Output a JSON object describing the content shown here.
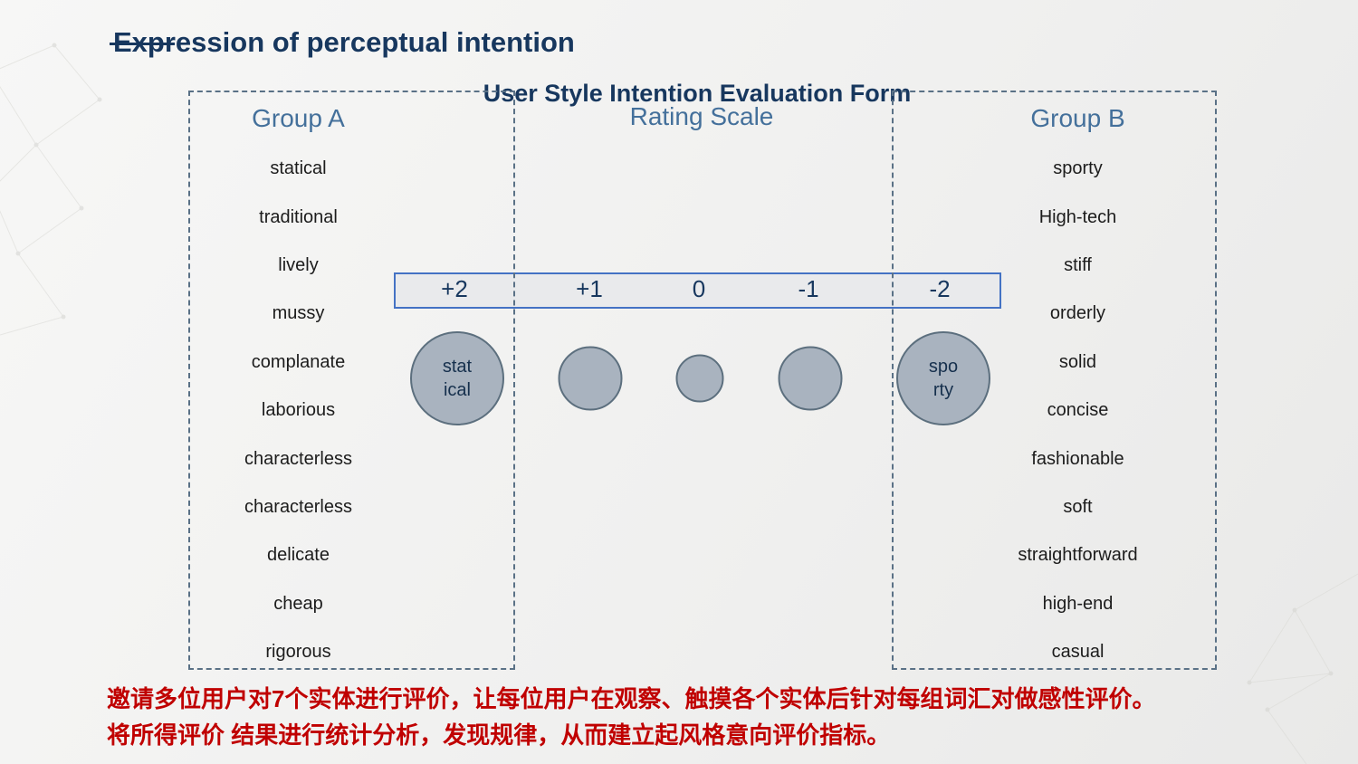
{
  "slide": {
    "title": "Expression of perceptual intention",
    "subtitle": "User Style Intention Evaluation Form"
  },
  "form": {
    "group_a": {
      "header": "Group A",
      "items": [
        "statical",
        "traditional",
        "lively",
        "mussy",
        "complanate",
        "laborious",
        "characterless",
        "characterless",
        "delicate",
        "cheap",
        "rigorous"
      ]
    },
    "rating_scale": {
      "header": "Rating Scale",
      "ticks": [
        "+2",
        "+1",
        "0",
        "-1",
        "-2"
      ],
      "circles": [
        {
          "label": "stat\nical",
          "size": "large"
        },
        {
          "label": "",
          "size": "medium"
        },
        {
          "label": "",
          "size": "small"
        },
        {
          "label": "",
          "size": "medium"
        },
        {
          "label": "spo\nrty",
          "size": "large"
        }
      ]
    },
    "group_b": {
      "header": "Group B",
      "items": [
        "sporty",
        "High-tech",
        "stiff",
        "orderly",
        "solid",
        "concise",
        "fashionable",
        "soft",
        "straightforward",
        "high-end",
        "casual"
      ]
    }
  },
  "footer": {
    "line1": "邀请多位用户对7个实体进行评价，让每位用户在观察、触摸各个实体后针对每组词汇对做感性评价。",
    "line2": "将所得评价 结果进行统计分析，发现规律，从而建立起风格意向评价指标。"
  },
  "colors": {
    "title": "#17375E",
    "group_header": "#44709B",
    "item_text": "#1C1C1C",
    "bar_border": "#4472C4",
    "bar_fill": "#E9EAEC",
    "circle_fill": "#A9B3BF",
    "circle_border": "#5C6F7E",
    "box_border": "#5A7186",
    "footer_text": "#C00000"
  }
}
